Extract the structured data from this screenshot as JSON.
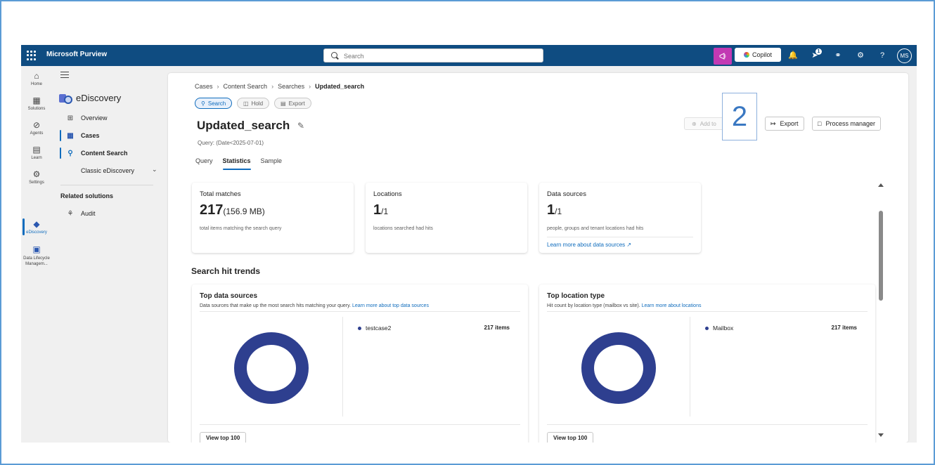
{
  "topbar": {
    "app_name": "Microsoft Purview",
    "search_placeholder": "Search",
    "copilot_label": "Copilot",
    "notification_badge": "1",
    "avatar_initials": "MS"
  },
  "rail": {
    "items": [
      {
        "label": "Home",
        "icon": "home-icon"
      },
      {
        "label": "Solutions",
        "icon": "solutions-icon"
      },
      {
        "label": "Agents",
        "icon": "agents-icon"
      },
      {
        "label": "Learn",
        "icon": "learn-icon"
      },
      {
        "label": "Settings",
        "icon": "settings-icon"
      },
      {
        "label": "eDiscovery",
        "icon": "ediscovery-icon"
      },
      {
        "label": "Data Lifecycle Managem...",
        "icon": "data-lifecycle-icon"
      }
    ]
  },
  "nav": {
    "section_title": "eDiscovery",
    "items": [
      {
        "label": "Overview"
      },
      {
        "label": "Cases"
      },
      {
        "label": "Content Search"
      },
      {
        "label": "Classic eDiscovery"
      }
    ],
    "related_title": "Related solutions",
    "related_items": [
      {
        "label": "Audit"
      }
    ]
  },
  "breadcrumb": [
    "Cases",
    "Content Search",
    "Searches",
    "Updated_search"
  ],
  "pills": {
    "search": "Search",
    "hold": "Hold",
    "export": "Export"
  },
  "page": {
    "title": "Updated_search",
    "query": "Query: (Date<2025-07-01)",
    "tabs": [
      "Query",
      "Statistics",
      "Sample"
    ],
    "active_tab": "Statistics"
  },
  "actions": {
    "add_label": "Add to",
    "export_label": "Export",
    "process_manager_label": "Process manager",
    "callout_number": "2"
  },
  "stats": {
    "total_matches": {
      "label": "Total matches",
      "value": "217",
      "size": "(156.9 MB)",
      "desc": "total items matching the search query"
    },
    "locations": {
      "label": "Locations",
      "value": "1",
      "total": "/1",
      "desc": "locations searched had hits"
    },
    "data_sources": {
      "label": "Data sources",
      "value": "1",
      "total": "/1",
      "desc": "people, groups and tenant locations had hits",
      "link": "Learn more about data sources"
    }
  },
  "trends": {
    "title": "Search hit trends",
    "top_sources": {
      "title": "Top data sources",
      "subtitle": "Data sources that make up the most search hits matching your query.",
      "link": "Learn more about top data sources",
      "legend": [
        {
          "name": "testcase2",
          "count": "217 items"
        }
      ],
      "button": "View top 100"
    },
    "top_location": {
      "title": "Top location type",
      "subtitle": "Hit count by location type (mailbox vs site).",
      "link": "Learn more about locations",
      "legend": [
        {
          "name": "Mailbox",
          "count": "217 items"
        }
      ],
      "button": "View top 100"
    }
  },
  "colors": {
    "topbar": "#0f4c81",
    "accent": "#0f6cbd",
    "donut": "#2e3f8f",
    "copilot_magenta": "#c239b3"
  }
}
